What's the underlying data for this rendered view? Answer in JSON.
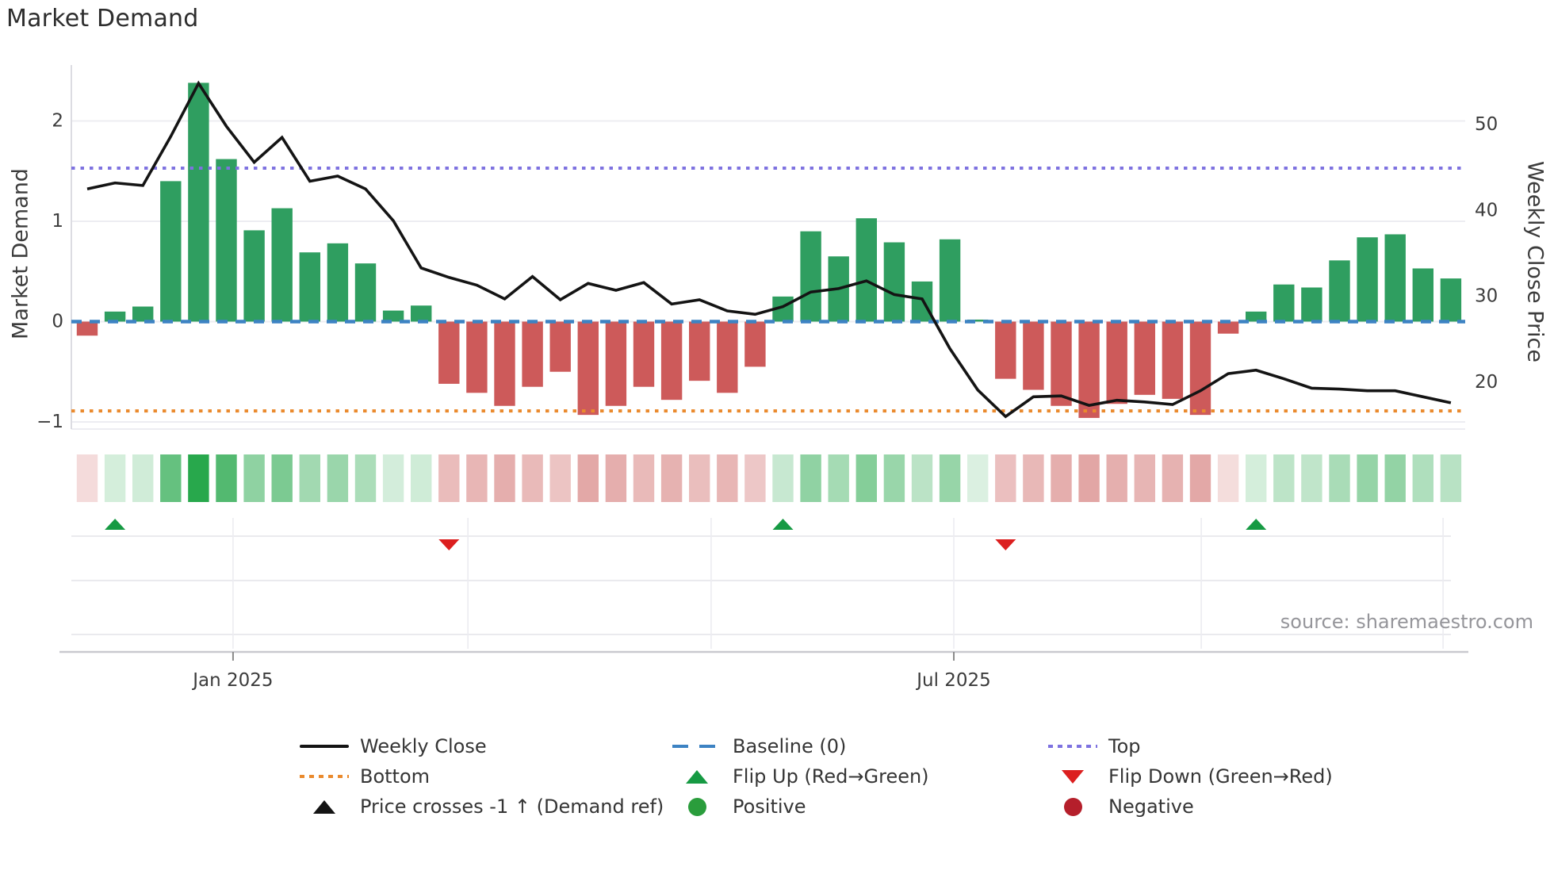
{
  "app": {
    "title": "Market Demand"
  },
  "axes": {
    "left": {
      "title": "Market Demand",
      "ticks": [
        {
          "label": "2",
          "value": 2
        },
        {
          "label": "1",
          "value": 1
        },
        {
          "label": "0",
          "value": 0
        },
        {
          "label": "−1",
          "value": -1
        }
      ]
    },
    "right": {
      "title": "Weekly Close Price",
      "ticks": [
        {
          "label": "50",
          "value": 50
        },
        {
          "label": "40",
          "value": 40
        },
        {
          "label": "30",
          "value": 30
        },
        {
          "label": "20",
          "value": 20
        }
      ]
    },
    "x": {
      "ticks": [
        {
          "label": "Jan 2025",
          "week": 5.24
        },
        {
          "label": "Jul 2025",
          "week": 31.14
        }
      ],
      "minor_gridline_weeks": [
        5.24,
        13.68,
        22.42,
        31.14,
        40.03,
        48.72
      ]
    }
  },
  "source_note": "source: sharemaestro.com",
  "legend": {
    "items": [
      {
        "id": "weekly-close",
        "label": "Weekly Close",
        "swatch": "sw-line"
      },
      {
        "id": "bottom",
        "label": "Bottom",
        "swatch": "sw-dot-orange"
      },
      {
        "id": "price-crosses",
        "label": "Price crosses -1 ↑ (Demand ref)",
        "swatch": "sw-tri-up-black"
      },
      {
        "id": "baseline",
        "label": "Baseline (0)",
        "swatch": "sw-dash-blue"
      },
      {
        "id": "flip-up",
        "label": "Flip Up (Red→Green)",
        "swatch": "sw-tri-up-green"
      },
      {
        "id": "positive",
        "label": "Positive",
        "swatch": "sw-circle-green"
      },
      {
        "id": "top",
        "label": "Top",
        "swatch": "sw-dot-purple"
      },
      {
        "id": "flip-down",
        "label": "Flip Down (Green→Red)",
        "swatch": "sw-tri-down-red"
      },
      {
        "id": "negative",
        "label": "Negative",
        "swatch": "sw-circle-red"
      }
    ]
  },
  "chart_data": {
    "type": "combo-bar-line-heatmap",
    "title": "Market Demand",
    "x_unit": "week",
    "n_weeks": 50,
    "ylabel_left": "Market Demand",
    "ylabel_right": "Weekly Close Price",
    "ylim_left": [
      -1.2,
      2.56
    ],
    "ylim_right": [
      14.5,
      57
    ],
    "grid": true,
    "legend_position": "bottom",
    "demand_bars": [
      -0.14,
      0.1,
      0.15,
      1.4,
      2.38,
      1.62,
      0.91,
      1.13,
      0.69,
      0.78,
      0.58,
      0.11,
      0.16,
      -0.62,
      -0.71,
      -0.84,
      -0.65,
      -0.5,
      -0.93,
      -0.84,
      -0.65,
      -0.78,
      -0.59,
      -0.71,
      -0.45,
      0.25,
      0.9,
      0.65,
      1.03,
      0.79,
      0.4,
      0.82,
      0.02,
      -0.57,
      -0.68,
      -0.84,
      -0.96,
      -0.82,
      -0.73,
      -0.77,
      -0.93,
      -0.12,
      0.1,
      0.37,
      0.34,
      0.61,
      0.84,
      0.87,
      0.53,
      0.43
    ],
    "weekly_close": [
      42.5,
      43.2,
      42.9,
      48.6,
      54.8,
      49.8,
      45.6,
      48.5,
      43.4,
      44.0,
      42.5,
      38.8,
      33.3,
      32.2,
      31.3,
      29.7,
      32.3,
      29.6,
      31.5,
      30.7,
      31.6,
      29.1,
      29.6,
      28.3,
      27.9,
      28.8,
      30.5,
      30.9,
      31.8,
      30.2,
      29.7,
      23.9,
      19.1,
      16.0,
      18.3,
      18.4,
      17.3,
      17.9,
      17.7,
      17.4,
      19.0,
      21.0,
      21.4,
      20.4,
      19.3,
      19.2,
      19.0,
      19.0,
      18.3,
      17.6
    ],
    "reference_lines": {
      "baseline": 0,
      "top": 1.53,
      "bottom": -0.89
    },
    "flip_up_weeks": [
      1,
      25,
      42
    ],
    "flip_down_weeks": [
      13,
      33
    ],
    "price_crosses_minus1_weeks": [],
    "heatmap": "sign and magnitude of demand_bars",
    "colors": {
      "bar_positive": "#2f9e60",
      "bar_negative": "#cd5a5a",
      "line": "#141414",
      "baseline": "#3d83c3",
      "top": "#7e72e0",
      "bottom": "#ea8a2d",
      "flip_up_marker": "#169a43",
      "flip_down_marker": "#dc1f1f",
      "positive_dot": "#2a9d3c",
      "negative_dot": "#b51f2b",
      "heat_green_base": "#28a84c",
      "heat_red_base": "#ca5a58"
    }
  }
}
